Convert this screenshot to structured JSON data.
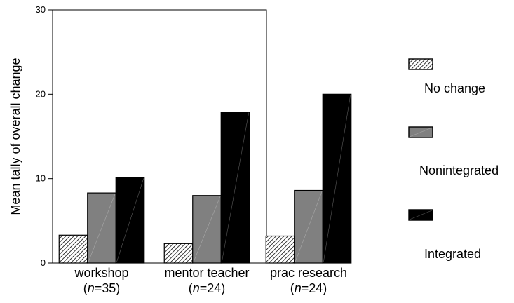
{
  "chart_data": {
    "type": "bar",
    "title": "",
    "xlabel": "",
    "ylabel": "Mean tally of overall change",
    "ylim": [
      0,
      30
    ],
    "yticks": [
      0,
      10,
      20,
      30
    ],
    "grid": false,
    "legend_position": "right",
    "categories": [
      {
        "name": "workshop",
        "n_prefix": "(",
        "n_var": "n",
        "n_eq": "=35)"
      },
      {
        "name": "mentor teacher",
        "n_prefix": "(",
        "n_var": "n",
        "n_eq": "=24)"
      },
      {
        "name": "prac research",
        "n_prefix": "(",
        "n_var": "n",
        "n_eq": "=24)"
      }
    ],
    "series": [
      {
        "name": "No change",
        "values": [
          3.3,
          2.3,
          3.2
        ],
        "fill": "hatch",
        "color": "#ffffff"
      },
      {
        "name": "Nonintegrated",
        "values": [
          8.3,
          8.0,
          8.6
        ],
        "fill": "solid",
        "color": "#808080"
      },
      {
        "name": "Integrated",
        "values": [
          10.1,
          17.9,
          20.0
        ],
        "fill": "solid",
        "color": "#000000"
      }
    ]
  }
}
